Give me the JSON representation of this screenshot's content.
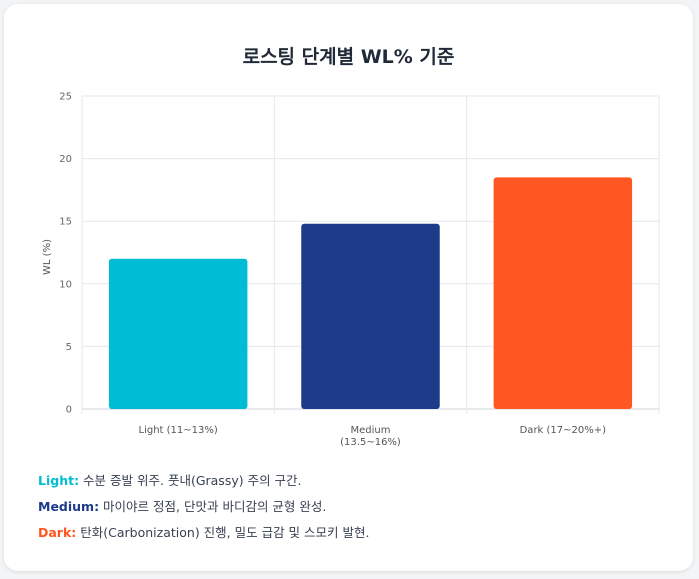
{
  "card": {
    "title": "로스팅 단계별 WL% 기준"
  },
  "chart_data": {
    "type": "bar",
    "title": "로스팅 단계별 WL% 기준",
    "ylabel": "WL (%)",
    "xlabel": "",
    "ylim": [
      0,
      25
    ],
    "yticks": [
      "0",
      "5",
      "10",
      "15",
      "20",
      "25"
    ],
    "grid": true,
    "categories": [
      [
        "Light (11~13%)"
      ],
      [
        "Medium",
        "(13.5~16%)"
      ],
      [
        "Dark (17~20%+)"
      ]
    ],
    "values": [
      12,
      14.8,
      18.5
    ],
    "colors": [
      "#00bcd4",
      "#1e3a8a",
      "#ff5722"
    ]
  },
  "notes": [
    {
      "key": "Light:",
      "text": " 수분 증발 위주. 풋내(Grassy) 주의 구간.",
      "color": "#00bcd4"
    },
    {
      "key": "Medium:",
      "text": " 마이야르 정점, 단맛과 바디감의 균형 완성.",
      "color": "#1e3a8a"
    },
    {
      "key": "Dark:",
      "text": " 탄화(Carbonization) 진행, 밀도 급감 및 스모키 발현.",
      "color": "#ff5722"
    }
  ]
}
